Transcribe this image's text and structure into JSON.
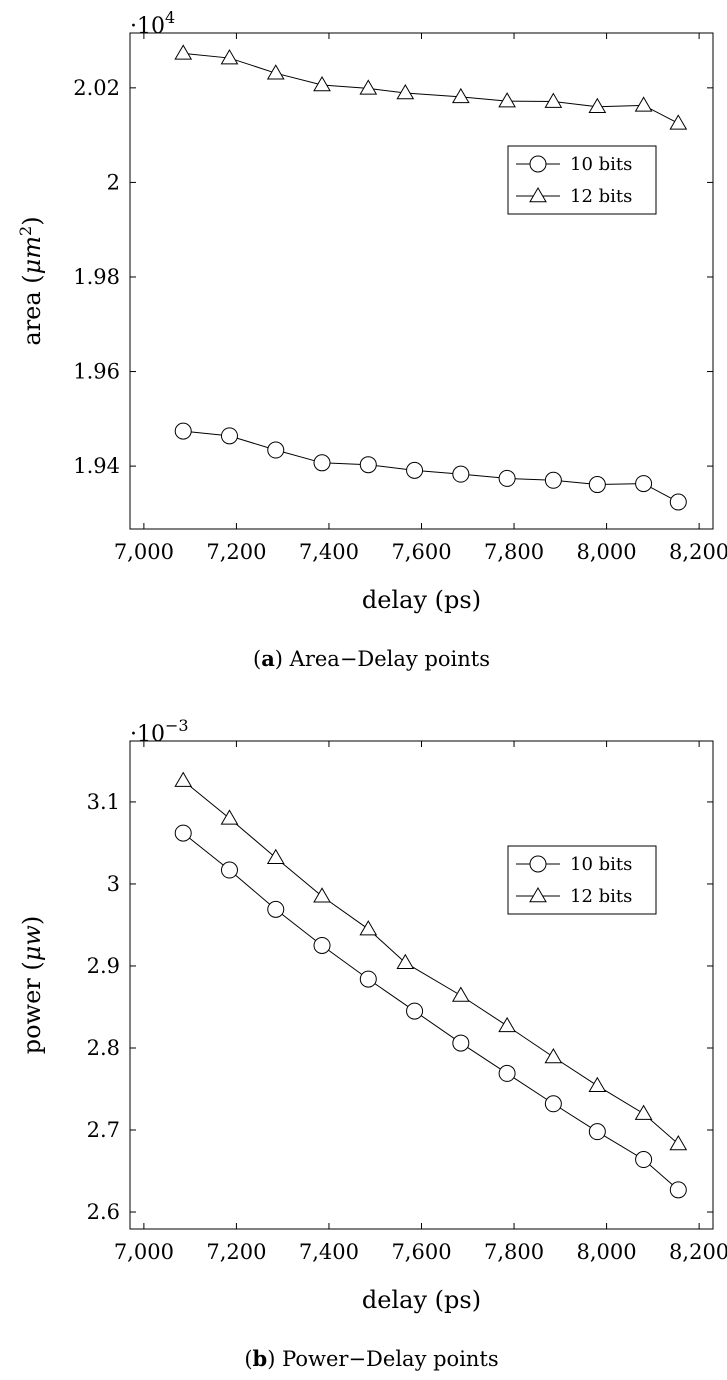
{
  "chart_data": [
    {
      "type": "line",
      "xlabel": "delay (ps)",
      "ylabel": "area (",
      "ylabel_unit": "μm",
      "ylabel_unit_sup": "2",
      "ylabel_close": ")",
      "exponent_prefix": "·10",
      "exponent_power": "4",
      "caption_letter": "a",
      "caption_text": " Area−Delay points",
      "xlim": [
        6970,
        8230
      ],
      "ylim": [
        1.9267,
        2.0316
      ],
      "x_ticks": [
        7000,
        7200,
        7400,
        7600,
        7800,
        8000,
        8200
      ],
      "x_tick_labels": [
        "7,000",
        "7,200",
        "7,400",
        "7,600",
        "7,800",
        "8,000",
        "8,200"
      ],
      "y_ticks": [
        1.94,
        1.96,
        1.98,
        2,
        2.02
      ],
      "y_tick_labels": [
        "1.94",
        "1.96",
        "1.98",
        "2",
        "2.02"
      ],
      "grid": false,
      "legend_position": "top-right",
      "series": [
        {
          "name": "10 bits",
          "marker": "circle",
          "x": [
            7085,
            7185,
            7285,
            7385,
            7485,
            7585,
            7685,
            7785,
            7885,
            7980,
            8080,
            8155
          ],
          "y": [
            1.9474,
            1.9464,
            1.9434,
            1.9407,
            1.9403,
            1.9391,
            1.9383,
            1.9374,
            1.937,
            1.9361,
            1.9363,
            1.9324
          ]
        },
        {
          "name": "12 bits",
          "marker": "triangle",
          "x": [
            7085,
            7185,
            7285,
            7385,
            7485,
            7565,
            7685,
            7785,
            7885,
            7980,
            8080,
            8155
          ],
          "y": [
            2.0273,
            2.0263,
            2.0231,
            2.0206,
            2.0199,
            2.0189,
            2.0181,
            2.0172,
            2.0171,
            2.016,
            2.0163,
            2.0125
          ]
        }
      ]
    },
    {
      "type": "line",
      "xlabel": "delay (ps)",
      "ylabel": "power (",
      "ylabel_unit": "μw",
      "ylabel_unit_sup": "",
      "ylabel_close": ")",
      "exponent_prefix": "·10",
      "exponent_power": "−3",
      "caption_letter": "b",
      "caption_text": " Power−Delay points",
      "xlim": [
        6970,
        8230
      ],
      "ylim": [
        2.5793,
        3.1743
      ],
      "x_ticks": [
        7000,
        7200,
        7400,
        7600,
        7800,
        8000,
        8200
      ],
      "x_tick_labels": [
        "7,000",
        "7,200",
        "7,400",
        "7,600",
        "7,800",
        "8,000",
        "8,200"
      ],
      "y_ticks": [
        2.6,
        2.7,
        2.8,
        2.9,
        3,
        3.1
      ],
      "y_tick_labels": [
        "2.6",
        "2.7",
        "2.8",
        "2.9",
        "3",
        "3.1"
      ],
      "grid": false,
      "legend_position": "top-right",
      "series": [
        {
          "name": "10 bits",
          "marker": "circle",
          "x": [
            7085,
            7185,
            7285,
            7385,
            7485,
            7585,
            7685,
            7785,
            7885,
            7980,
            8080,
            8155
          ],
          "y": [
            3.062,
            3.017,
            2.969,
            2.925,
            2.884,
            2.845,
            2.806,
            2.769,
            2.732,
            2.698,
            2.664,
            2.627
          ]
        },
        {
          "name": "12 bits",
          "marker": "triangle",
          "x": [
            7085,
            7185,
            7285,
            7385,
            7485,
            7565,
            7685,
            7785,
            7885,
            7980,
            8080,
            8155
          ],
          "y": [
            3.126,
            3.08,
            3.032,
            2.985,
            2.945,
            2.904,
            2.864,
            2.827,
            2.789,
            2.754,
            2.72,
            2.683
          ]
        }
      ]
    }
  ]
}
